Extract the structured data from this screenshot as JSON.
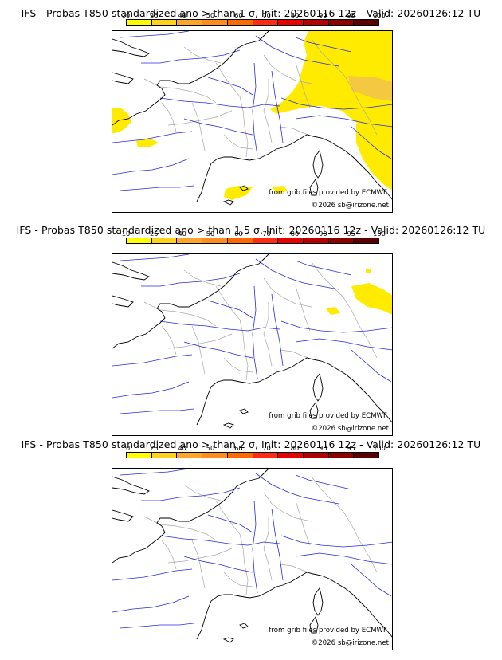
{
  "colors": {
    "colorbar": [
      "#ffff00",
      "#ffd21e",
      "#ffa52a",
      "#ff8c1e",
      "#ff6a00",
      "#ff2b12",
      "#e60000",
      "#b40000",
      "#8c0000",
      "#5a0000"
    ],
    "probability_fill": "#ffeb00",
    "probability_fill_high": "#f5c842",
    "coastline": "#000000",
    "rivers": "#2a2adf",
    "borders": "#a8a8a8"
  },
  "colorbar_ticks": [
    "10",
    "25",
    "40",
    "50",
    "60",
    "70",
    "80",
    "90",
    "95",
    "100"
  ],
  "panels": [
    {
      "title": "IFS - Probas T850  standardized ano > than 1 σ, Init: 20260116 12z - Valid: 20260126:12 TU",
      "credit_source": "from grib files provided by ECMWF",
      "credit_copyright": "©2026 sb@irizone.net",
      "probability_areas": [
        "east (Germany, Switzerland, Alps, north Italy)",
        "south-east Alps",
        "Brittany coast",
        "Bay of Biscay",
        "Gulf of Lion"
      ]
    },
    {
      "title": "IFS - Probas T850  standardized ano > than 1.5 σ, Init: 20260116 12z - Valid: 20260126:12 TU",
      "credit_source": "from grib files provided by ECMWF",
      "credit_copyright": "©2026 sb@irizone.net",
      "probability_areas": [
        "south Germany",
        "north Switzerland"
      ]
    },
    {
      "title": "IFS - Probas T850  standardized ano > than 2 σ, Init: 20260116 12z - Valid: 20260126:12 TU",
      "credit_source": "from grib files provided by ECMWF",
      "credit_copyright": "©2026 sb@irizone.net",
      "probability_areas": []
    }
  ]
}
